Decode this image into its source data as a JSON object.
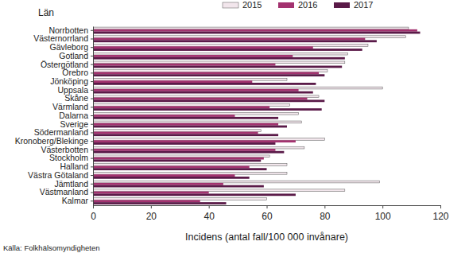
{
  "chart_data": {
    "type": "bar",
    "orientation": "horizontal",
    "y_label": "Län",
    "x_label": "Incidens (antal fall/100 000 invånare)",
    "source": "Källa: Folkhälsomyndigheten",
    "categories": [
      "Norrbotten",
      "Västernorrland",
      "Gävleborg",
      "Gotland",
      "Östergötland",
      "Örebro",
      "Jönköping",
      "Uppsala",
      "Skåne",
      "Värmland",
      "Dalarna",
      "Sverige",
      "Södermanland",
      "Kronoberg/Blekinge",
      "Västerbotten",
      "Stockholm",
      "Halland",
      "Västra Götaland",
      "Jämtland",
      "Västmanland",
      "Kalmar"
    ],
    "series": [
      {
        "name": "2015",
        "color": "#f2e6ec",
        "values": [
          109,
          108,
          95,
          88,
          87,
          81,
          67,
          100,
          78,
          68,
          71,
          72,
          58,
          80,
          73,
          61,
          67,
          67,
          99,
          87,
          60
        ]
      },
      {
        "name": "2016",
        "color": "#a3326f",
        "values": [
          112,
          94,
          76,
          69,
          63,
          78,
          55,
          71,
          74,
          61,
          49,
          64,
          57,
          70,
          63,
          59,
          54,
          49,
          45,
          40,
          37
        ]
      },
      {
        "name": "2017",
        "color": "#5a1a48",
        "values": [
          113,
          98,
          93,
          87,
          86,
          80,
          77,
          76,
          80,
          79,
          64,
          67,
          64,
          63,
          66,
          58,
          60,
          54,
          59,
          70,
          46
        ]
      }
    ],
    "xlim": [
      0,
      120
    ],
    "xticks": [
      0,
      20,
      40,
      60,
      80,
      100,
      120
    ],
    "legend": "top",
    "grid": false
  }
}
